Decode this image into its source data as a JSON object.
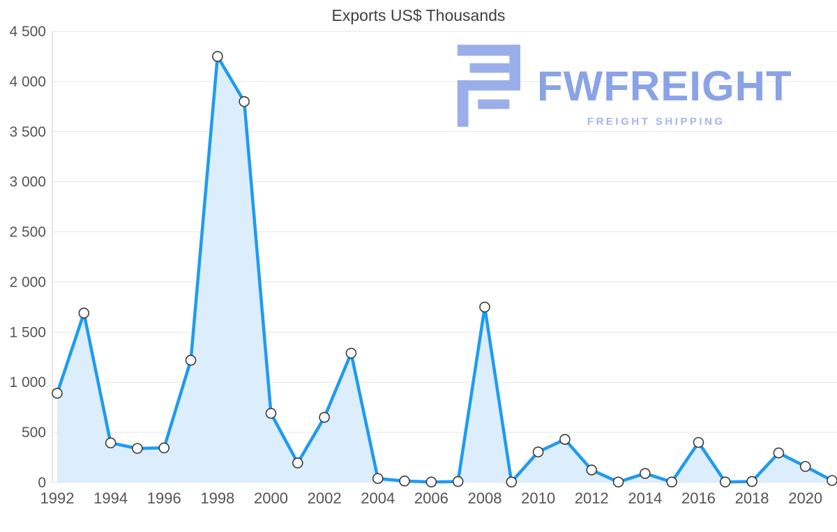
{
  "chart_data": {
    "type": "area",
    "title": "Exports US$ Thousands",
    "xlabel": "",
    "ylabel": "",
    "x": [
      1992,
      1993,
      1994,
      1995,
      1996,
      1997,
      1998,
      1999,
      2000,
      2001,
      2002,
      2003,
      2004,
      2005,
      2006,
      2007,
      2008,
      2009,
      2010,
      2011,
      2012,
      2013,
      2014,
      2015,
      2016,
      2017,
      2018,
      2019,
      2020,
      2021
    ],
    "series": [
      {
        "name": "Exports US$ Thousands",
        "values": [
          890,
          1690,
          395,
          340,
          345,
          1220,
          4250,
          3800,
          690,
          195,
          650,
          1290,
          40,
          15,
          5,
          10,
          1750,
          5,
          305,
          430,
          125,
          5,
          90,
          5,
          400,
          5,
          10,
          295,
          160,
          20
        ]
      }
    ],
    "ylim": [
      0,
      4500
    ],
    "grid": "horizontal",
    "legend_position": "none",
    "yticks": [
      {
        "value": 0,
        "label": "0"
      },
      {
        "value": 500,
        "label": "500"
      },
      {
        "value": 1000,
        "label": "1 000"
      },
      {
        "value": 1500,
        "label": "1 500"
      },
      {
        "value": 2000,
        "label": "2 000"
      },
      {
        "value": 2500,
        "label": "2 500"
      },
      {
        "value": 3000,
        "label": "3 000"
      },
      {
        "value": 3500,
        "label": "3 500"
      },
      {
        "value": 4000,
        "label": "4 000"
      },
      {
        "value": 4500,
        "label": "4 500"
      }
    ],
    "xticks": [
      "1992",
      "1994",
      "1996",
      "1998",
      "2000",
      "2002",
      "2004",
      "2006",
      "2008",
      "2010",
      "2012",
      "2014",
      "2016",
      "2018",
      "2020"
    ],
    "colors": {
      "line": "#1e9bef",
      "fill": "#dcedfc",
      "marker_fill": "#ffffff",
      "marker_stroke": "#3a3a3a",
      "grid": "#e5e5e5",
      "axis": "#cccccc",
      "title": "#3f3f3f",
      "tick": "#545454"
    }
  },
  "watermark": {
    "brand": "FWFREIGHT",
    "tagline": "FREIGHT SHIPPING",
    "text_color": "#8aa2e6",
    "tagline_color": "#a3b6ec",
    "icon_color": "#9aaeea"
  }
}
